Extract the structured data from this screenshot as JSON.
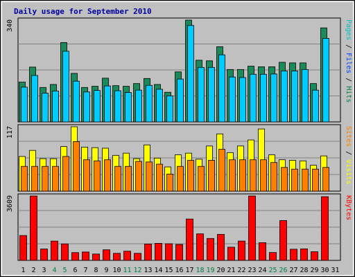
{
  "chart_data": {
    "type": "bar",
    "title": "Daily usage for September 2010",
    "days": [
      "1",
      "2",
      "3",
      "4",
      "5",
      "6",
      "7",
      "8",
      "9",
      "10",
      "11",
      "12",
      "13",
      "14",
      "15",
      "16",
      "17",
      "18",
      "19",
      "20",
      "21",
      "22",
      "23",
      "24",
      "25",
      "26",
      "27",
      "28",
      "29",
      "30",
      "31"
    ],
    "weekend_days": [
      "4",
      "5",
      "11",
      "12",
      "18",
      "19",
      "25",
      "26"
    ],
    "panels": [
      {
        "id": "top",
        "max_label": "340",
        "ymax": 340,
        "axis_labels": [
          {
            "text": "Pages",
            "color": "#00c0c0"
          },
          {
            "text": " / ",
            "color": "#000000"
          },
          {
            "text": "Files",
            "color": "#0040ff"
          },
          {
            "text": " / ",
            "color": "#000000"
          },
          {
            "text": "Hits",
            "color": "#008040"
          }
        ],
        "series": [
          {
            "color": "#1b8a5a",
            "values": [
              133,
              183,
              115,
              125,
              265,
              162,
              115,
              119,
              146,
              121,
              119,
              128,
              145,
              125,
              99,
              167,
              340,
              206,
              204,
              251,
              175,
              175,
              186,
              184,
              184,
              199,
              197,
              197,
              128,
              314,
              0
            ]
          },
          {
            "color": "#00ccff",
            "values": [
              116,
              155,
              96,
              103,
              236,
              136,
              100,
              105,
              120,
              104,
              98,
              106,
              122,
              109,
              87,
              143,
              322,
              182,
              182,
              224,
              150,
              148,
              159,
              159,
              160,
              170,
              170,
              175,
              106,
              279,
              0
            ]
          }
        ]
      },
      {
        "id": "mid",
        "max_label": "117",
        "ymax": 117,
        "axis_labels": [
          {
            "text": "Sites",
            "color": "#ff8000"
          },
          {
            "text": " / ",
            "color": "#000000"
          },
          {
            "text": "Visits",
            "color": "#ffff00"
          }
        ],
        "series": [
          {
            "color": "#ffff00",
            "values": [
              63,
              74,
              59,
              59,
              81,
              117,
              80,
              79,
              78,
              65,
              69,
              59,
              84,
              60,
              44,
              66,
              69,
              58,
              82,
              104,
              70,
              82,
              93,
              113,
              66,
              57,
              56,
              55,
              47,
              64,
              0
            ]
          },
          {
            "color": "#ff8000",
            "values": [
              45,
              45,
              45,
              45,
              63,
              90,
              57,
              55,
              57,
              45,
              45,
              54,
              53,
              49,
              31,
              45,
              56,
              45,
              56,
              76,
              57,
              57,
              57,
              57,
              52,
              43,
              40,
              40,
              40,
              43,
              0
            ]
          }
        ]
      },
      {
        "id": "bot",
        "max_label": "3609",
        "ymax": 3609,
        "axis_labels": [
          {
            "text": "KBytes",
            "color": "#ff0000"
          }
        ],
        "series": [
          {
            "color": "#ff0000",
            "values": [
              1393,
              3609,
              638,
              1081,
              923,
              437,
              470,
              357,
              594,
              396,
              515,
              396,
              917,
              954,
              933,
              893,
              2319,
              1487,
              1230,
              1458,
              740,
              1083,
              3609,
              993,
              441,
              2233,
              625,
              646,
              486,
              3570,
              0
            ]
          }
        ]
      }
    ]
  }
}
